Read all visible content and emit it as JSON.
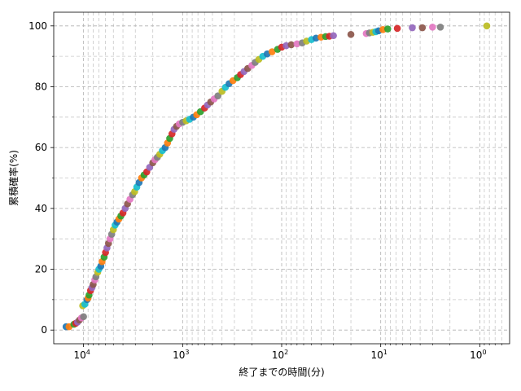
{
  "chart_data": {
    "type": "scatter",
    "title": "",
    "xlabel": "終了までの時間(分)",
    "ylabel": "累積確率(%)",
    "x_scale": "log",
    "x_inverted": true,
    "xlim": [
      20000,
      0.5
    ],
    "ylim": [
      -4.5,
      104.5
    ],
    "x_ticks": [
      {
        "value": 10000,
        "base": "10",
        "exp": "4"
      },
      {
        "value": 1000,
        "base": "10",
        "exp": "3"
      },
      {
        "value": 100,
        "base": "10",
        "exp": "2"
      },
      {
        "value": 10,
        "base": "10",
        "exp": "1"
      },
      {
        "value": 1,
        "base": "10",
        "exp": "0"
      }
    ],
    "y_ticks": [
      0,
      20,
      40,
      60,
      80,
      100
    ],
    "grid": {
      "major": true,
      "minor": true,
      "style": "dashed"
    },
    "marker_colors": [
      "#1f77b4",
      "#ff7f0e",
      "#2ca02c",
      "#d62728",
      "#9467bd",
      "#8c564b",
      "#e377c2",
      "#7f7f7f",
      "#bcbd22",
      "#17becf"
    ],
    "points": [
      [
        15000,
        1.1
      ],
      [
        14000,
        1.1
      ],
      [
        12500,
        1.9
      ],
      [
        12000,
        2.2
      ],
      [
        11500,
        2.6
      ],
      [
        11000,
        3.3
      ],
      [
        10500,
        4.0
      ],
      [
        10000,
        4.4
      ],
      [
        10200,
        8.0
      ],
      [
        9700,
        8.5
      ],
      [
        9200,
        10.0
      ],
      [
        9000,
        10.5
      ],
      [
        8800,
        11.5
      ],
      [
        8500,
        13.0
      ],
      [
        8200,
        14.0
      ],
      [
        8000,
        15.0
      ],
      [
        7700,
        16.5
      ],
      [
        7500,
        17.5
      ],
      [
        7200,
        19.0
      ],
      [
        7000,
        20.0
      ],
      [
        6700,
        21.0
      ],
      [
        6500,
        22.5
      ],
      [
        6200,
        24.0
      ],
      [
        6000,
        25.5
      ],
      [
        5800,
        27.0
      ],
      [
        5600,
        28.5
      ],
      [
        5400,
        30.0
      ],
      [
        5200,
        31.5
      ],
      [
        5000,
        33.0
      ],
      [
        4800,
        34.5
      ],
      [
        4600,
        35.5
      ],
      [
        4400,
        36.5
      ],
      [
        4200,
        37.5
      ],
      [
        4000,
        38.5
      ],
      [
        3800,
        40.0
      ],
      [
        3600,
        41.5
      ],
      [
        3400,
        43.0
      ],
      [
        3200,
        44.5
      ],
      [
        3050,
        45.5
      ],
      [
        2900,
        47.0
      ],
      [
        2750,
        48.5
      ],
      [
        2600,
        50.0
      ],
      [
        2450,
        51.0
      ],
      [
        2300,
        52.0
      ],
      [
        2150,
        53.5
      ],
      [
        2000,
        55.0
      ],
      [
        1900,
        56.0
      ],
      [
        1800,
        56.8
      ],
      [
        1700,
        57.8
      ],
      [
        1600,
        59.0
      ],
      [
        1500,
        60.0
      ],
      [
        1420,
        61.5
      ],
      [
        1350,
        63.0
      ],
      [
        1280,
        64.5
      ],
      [
        1220,
        66.0
      ],
      [
        1150,
        67.0
      ],
      [
        1080,
        67.8
      ],
      [
        1000,
        68.3
      ],
      [
        920,
        68.8
      ],
      [
        850,
        69.3
      ],
      [
        780,
        70.0
      ],
      [
        720,
        70.8
      ],
      [
        660,
        71.8
      ],
      [
        600,
        73.0
      ],
      [
        560,
        74.0
      ],
      [
        520,
        75.0
      ],
      [
        480,
        76.0
      ],
      [
        440,
        77.0
      ],
      [
        400,
        78.5
      ],
      [
        370,
        79.8
      ],
      [
        340,
        81.0
      ],
      [
        310,
        82.0
      ],
      [
        280,
        83.0
      ],
      [
        260,
        84.0
      ],
      [
        240,
        85.0
      ],
      [
        220,
        86.0
      ],
      [
        200,
        87.0
      ],
      [
        185,
        88.0
      ],
      [
        170,
        89.0
      ],
      [
        155,
        90.0
      ],
      [
        140,
        90.8
      ],
      [
        125,
        91.5
      ],
      [
        110,
        92.3
      ],
      [
        100,
        93.0
      ],
      [
        90,
        93.5
      ],
      [
        80,
        93.8
      ],
      [
        70,
        94.1
      ],
      [
        62,
        94.4
      ],
      [
        56,
        95.0
      ],
      [
        50,
        95.5
      ],
      [
        45,
        96.0
      ],
      [
        40,
        96.3
      ],
      [
        36,
        96.5
      ],
      [
        33,
        96.6
      ],
      [
        30,
        96.8
      ],
      [
        20,
        97.2
      ],
      [
        14,
        97.5
      ],
      [
        13,
        97.7
      ],
      [
        12,
        97.9
      ],
      [
        11.2,
        98.1
      ],
      [
        10.5,
        98.4
      ],
      [
        9.5,
        98.8
      ],
      [
        8.5,
        99.0
      ],
      [
        6.8,
        99.2
      ],
      [
        4.8,
        99.4
      ],
      [
        3.8,
        99.4
      ],
      [
        3.0,
        99.6
      ],
      [
        2.5,
        99.6
      ],
      [
        0.85,
        100.0
      ]
    ]
  }
}
